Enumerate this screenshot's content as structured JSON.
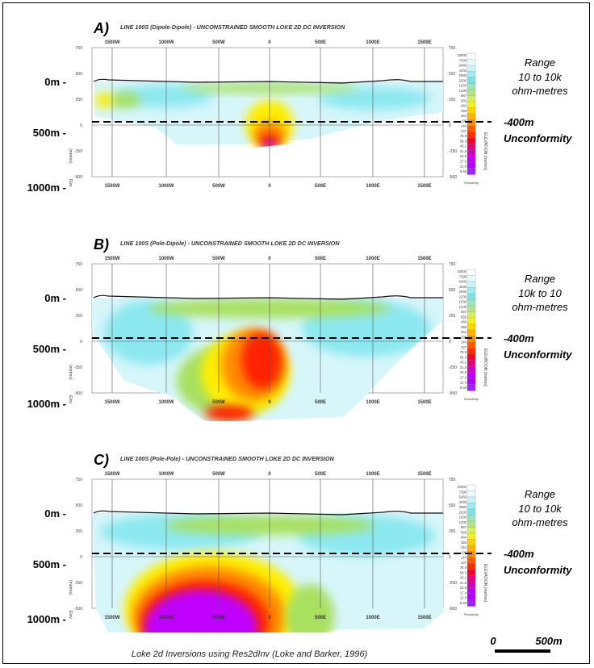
{
  "panels": [
    {
      "letter": "A)",
      "title": "LINE 100S (Dipole-Dipole) - UNCONSTRAINED SMOOTH LOKE 2D DC INVERSION",
      "range_label": "Range",
      "range_value": "10 to 10k",
      "range_unit": "ohm-metres",
      "unconformity_depth": "-400m",
      "unconformity_label": "Unconformity"
    },
    {
      "letter": "B)",
      "title": "LINE 100S (Pole-Dipole) - UNCONSTRAINED SMOOTH LOKE 2D DC INVERSION",
      "range_label": "Range",
      "range_value": "10k to 10",
      "range_unit": "ohm-metres",
      "unconformity_depth": "-400m",
      "unconformity_label": "Unconformity"
    },
    {
      "letter": "C)",
      "title": "LINE 100S (Pole-Pole) - UNCONSTRAINED SMOOTH LOKE 2D DC INVERSION",
      "range_label": "Range",
      "range_value": "10 to 10k",
      "range_unit": "ohm-metres",
      "unconformity_depth": "-400m",
      "unconformity_label": "Unconformity"
    }
  ],
  "x_ticks": [
    "1500W",
    "1000W",
    "500W",
    "0",
    "500E",
    "1000E",
    "1500E"
  ],
  "elevation_ticks": [
    "750",
    "500",
    "250",
    "0",
    "-250",
    "-500"
  ],
  "depth_labels": [
    "0m -",
    "500m -",
    "1000m -"
  ],
  "left_axis_label": "(metres)",
  "left_axis_label2": "Elev",
  "right_axis_label": "ELEVATION (metres)",
  "colorbar_values": [
    "10000",
    "7390",
    "5460",
    "4030",
    "2980",
    "2200",
    "1630",
    "1200",
    "887",
    "655",
    "484",
    "358",
    "264",
    "195",
    "144",
    "107",
    "78.9",
    "58.3",
    "43.1",
    "31.8",
    "23.5",
    "17.4",
    "12.8",
    "9.48"
  ],
  "colorbar_caption": "Resistivity",
  "caption": "Loke 2d Inversions using Res2dInv (Loke and Barker, 1996)",
  "scale_zero": "0",
  "scale_length": "500m",
  "colors": {
    "magenta": "#c000ff",
    "red": "#ff2000",
    "orange": "#ff8c00",
    "yellow": "#ffee00",
    "green": "#a8e060",
    "cyan": "#8ce8f0",
    "lightblue": "#d6f6fa",
    "dashed_line": "#000000"
  }
}
